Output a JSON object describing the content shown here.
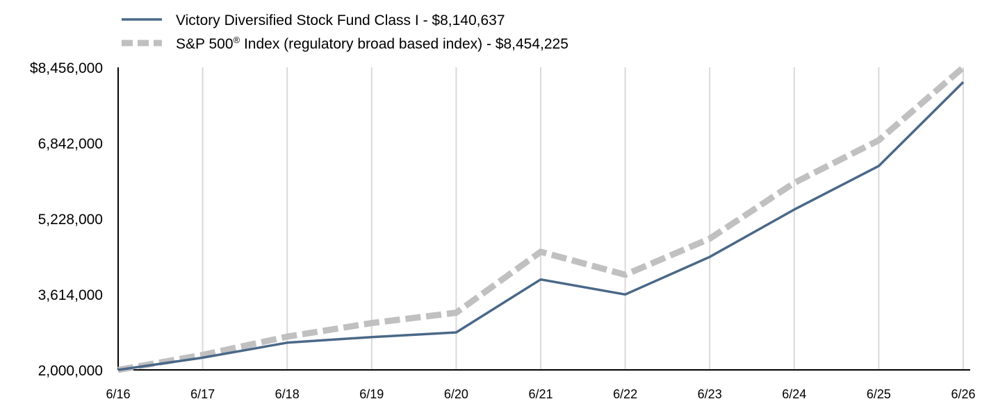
{
  "chart_data": {
    "type": "line",
    "categories": [
      "6/16",
      "6/17",
      "6/18",
      "6/19",
      "6/20",
      "6/21",
      "6/22",
      "6/23",
      "6/24",
      "6/25",
      "6/26"
    ],
    "series": [
      {
        "name": "Victory Diversified Stock Fund Class I - $8,140,637",
        "color": "#4a6888",
        "style": "solid",
        "values": [
          2000000,
          2260000,
          2580000,
          2700000,
          2800000,
          3930000,
          3610000,
          4410000,
          5420000,
          6350000,
          8140637
        ]
      },
      {
        "name_prefix": "S&P 500",
        "name_sup": "®",
        "name_suffix": " Index (regulatory broad based index) - $8,454,225",
        "color": "#c0c0c0",
        "style": "dashed",
        "values": [
          2000000,
          2320000,
          2710000,
          3000000,
          3220000,
          4520000,
          4030000,
          4800000,
          5990000,
          6900000,
          8454225
        ]
      }
    ],
    "y_ticks": [
      "2,000,000",
      "3,614,000",
      "5,228,000",
      "6,842,000",
      "$8,456,000"
    ],
    "ylim": [
      2000000,
      8456000
    ],
    "grid": "vertical",
    "legend": "top-left"
  }
}
